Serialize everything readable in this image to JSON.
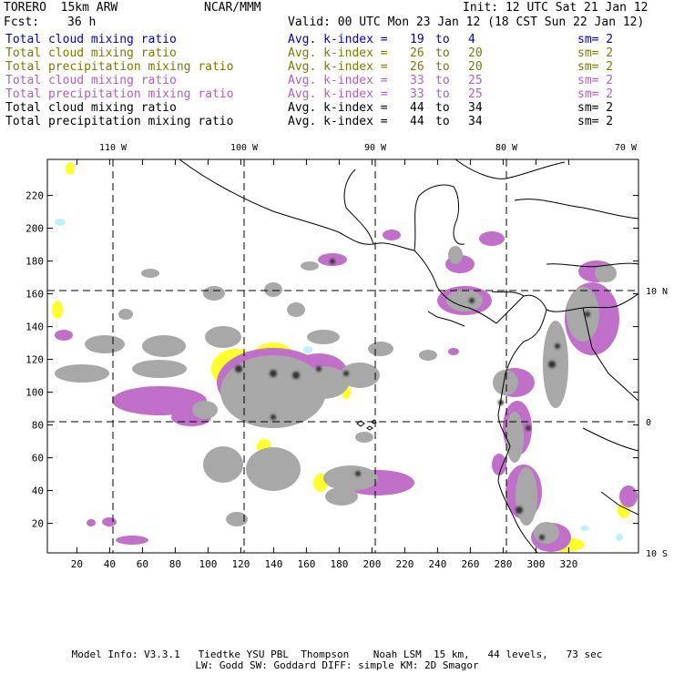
{
  "header": {
    "model": "TORERO  15km ARW",
    "org": "NCAR/MMM",
    "init": "Init: 12 UTC Sat 21 Jan 12",
    "fcst_label": "Fcst:",
    "fcst_value": "36 h",
    "valid": "Valid: 00 UTC Mon 23 Jan 12 (18 CST Sun 22 Jan 12)"
  },
  "legend": [
    {
      "field": "Total cloud mixing ratio",
      "avg": "Avg. k-index =",
      "k1": "19",
      "to": "to",
      "k2": "4",
      "sm": "sm= 2",
      "color": "#0000cc"
    },
    {
      "field": "Total cloud mixing ratio",
      "avg": "Avg. k-index =",
      "k1": "26",
      "to": "to",
      "k2": "20",
      "sm": "sm= 2",
      "color": "#7a7a00"
    },
    {
      "field": "Total precipitation mixing ratio",
      "avg": "Avg. k-index =",
      "k1": "26",
      "to": "to",
      "k2": "20",
      "sm": "sm= 2",
      "color": "#7a7a00"
    },
    {
      "field": "Total cloud mixing ratio",
      "avg": "Avg. k-index =",
      "k1": "33",
      "to": "to",
      "k2": "25",
      "sm": "sm= 2",
      "color": "#b060c0"
    },
    {
      "field": "Total precipitation mixing ratio",
      "avg": "Avg. k-index =",
      "k1": "33",
      "to": "to",
      "k2": "25",
      "sm": "sm= 2",
      "color": "#b060c0"
    },
    {
      "field": "Total cloud mixing ratio",
      "avg": "Avg. k-index =",
      "k1": "44",
      "to": "to",
      "k2": "34",
      "sm": "sm= 2",
      "color": "#000000"
    },
    {
      "field": "Total precipitation mixing ratio",
      "avg": "Avg. k-index =",
      "k1": "44",
      "to": "to",
      "k2": "34",
      "sm": "sm= 2",
      "color": "#000000"
    }
  ],
  "map": {
    "x_ticks": [
      "20",
      "40",
      "60",
      "80",
      "100",
      "120",
      "140",
      "160",
      "180",
      "200",
      "220",
      "240",
      "260",
      "280",
      "300",
      "320"
    ],
    "y_ticks": [
      "20",
      "40",
      "60",
      "80",
      "100",
      "120",
      "140",
      "160",
      "180",
      "200",
      "220"
    ],
    "lon_labels": [
      "110 W",
      "100 W",
      "90 W",
      "80 W",
      "70 W"
    ],
    "lat_labels": [
      "10 N",
      "0",
      "10 S"
    ],
    "colors": {
      "gray": "#a8a8a8",
      "dark": "#303030",
      "purple": "#c070c8",
      "yellow": "#ffff30",
      "cyan": "#c0f0ff",
      "coast": "#000000"
    }
  },
  "footer": {
    "line1": "Model Info: V3.3.1   Tiedtke YSU PBL  Thompson    Noah LSM  15 km,   44 levels,   73 sec",
    "line2": "LW: Godd SW: Goddard DIFF: simple KM: 2D Smagor"
  }
}
